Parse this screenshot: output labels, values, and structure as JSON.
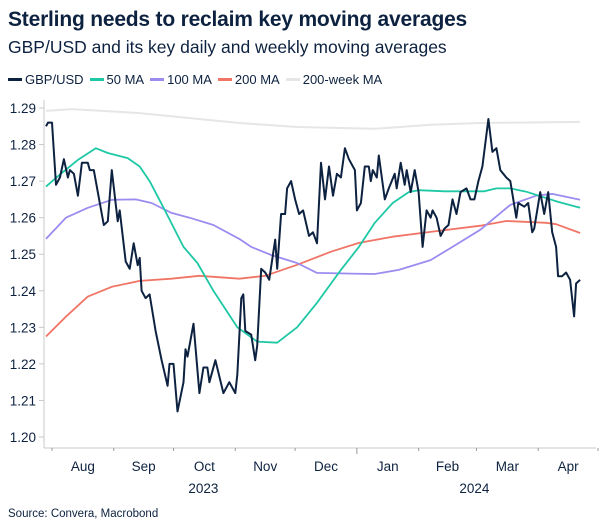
{
  "chart_data": {
    "type": "line",
    "title": "Sterling needs to reclaim key moving averages",
    "subtitle": "GBP/USD and its key daily and weekly moving averages",
    "source": "Source: Convera, Macrobond",
    "ylim": [
      1.2,
      1.29
    ],
    "yticks": [
      "1.29",
      "1.28",
      "1.27",
      "1.26",
      "1.25",
      "1.24",
      "1.23",
      "1.22",
      "1.21",
      "1.20"
    ],
    "xlim": [
      "2023-07-28",
      "2024-04-30"
    ],
    "xmonths": [
      {
        "label": "Aug",
        "start": "2023-08-01"
      },
      {
        "label": "Sep",
        "start": "2023-09-01"
      },
      {
        "label": "Oct",
        "start": "2023-10-01"
      },
      {
        "label": "Nov",
        "start": "2023-11-01"
      },
      {
        "label": "Dec",
        "start": "2023-12-01"
      },
      {
        "label": "Jan",
        "start": "2024-01-01"
      },
      {
        "label": "Feb",
        "start": "2024-02-01"
      },
      {
        "label": "Mar",
        "start": "2024-03-01"
      },
      {
        "label": "Apr",
        "start": "2024-04-01"
      }
    ],
    "month_end": "2024-05-01",
    "years": [
      {
        "label": "2023",
        "center": "2023-10-16"
      },
      {
        "label": "2024",
        "center": "2024-02-29"
      }
    ],
    "grid": false,
    "legend_placement": "top-left",
    "series": [
      {
        "name": "GBP/USD",
        "color": "#0d2240",
        "width": 2,
        "points": [
          [
            "2023-07-29",
            1.285
          ],
          [
            "2023-07-30",
            1.286
          ],
          [
            "2023-08-01",
            1.286
          ],
          [
            "2023-08-03",
            1.269
          ],
          [
            "2023-08-05",
            1.271
          ],
          [
            "2023-08-07",
            1.276
          ],
          [
            "2023-08-09",
            1.271
          ],
          [
            "2023-08-10",
            1.273
          ],
          [
            "2023-08-12",
            1.272
          ],
          [
            "2023-08-14",
            1.266
          ],
          [
            "2023-08-16",
            1.275
          ],
          [
            "2023-08-19",
            1.275
          ],
          [
            "2023-08-20",
            1.273
          ],
          [
            "2023-08-22",
            1.273
          ],
          [
            "2023-08-24",
            1.267
          ],
          [
            "2023-08-27",
            1.258
          ],
          [
            "2023-08-29",
            1.259
          ],
          [
            "2023-08-31",
            1.273
          ],
          [
            "2023-09-03",
            1.259
          ],
          [
            "2023-09-04",
            1.262
          ],
          [
            "2023-09-07",
            1.248
          ],
          [
            "2023-09-09",
            1.246
          ],
          [
            "2023-09-11",
            1.253
          ],
          [
            "2023-09-13",
            1.247
          ],
          [
            "2023-09-14",
            1.249
          ],
          [
            "2023-09-15",
            1.24
          ],
          [
            "2023-09-17",
            1.238
          ],
          [
            "2023-09-19",
            1.239
          ],
          [
            "2023-09-22",
            1.229
          ],
          [
            "2023-09-25",
            1.221
          ],
          [
            "2023-09-28",
            1.214
          ],
          [
            "2023-09-29",
            1.22
          ],
          [
            "2023-10-01",
            1.22
          ],
          [
            "2023-10-03",
            1.207
          ],
          [
            "2023-10-06",
            1.215
          ],
          [
            "2023-10-07",
            1.224
          ],
          [
            "2023-10-08",
            1.222
          ],
          [
            "2023-10-11",
            1.231
          ],
          [
            "2023-10-14",
            1.212
          ],
          [
            "2023-10-16",
            1.219
          ],
          [
            "2023-10-18",
            1.219
          ],
          [
            "2023-10-19",
            1.215
          ],
          [
            "2023-10-22",
            1.221
          ],
          [
            "2023-10-26",
            1.212
          ],
          [
            "2023-10-29",
            1.215
          ],
          [
            "2023-11-01",
            1.212
          ],
          [
            "2023-11-02",
            1.217
          ],
          [
            "2023-11-04",
            1.238
          ],
          [
            "2023-11-05",
            1.239
          ],
          [
            "2023-11-06",
            1.229
          ],
          [
            "2023-11-09",
            1.228
          ],
          [
            "2023-11-11",
            1.221
          ],
          [
            "2023-11-12",
            1.225
          ],
          [
            "2023-11-14",
            1.246
          ],
          [
            "2023-11-16",
            1.245
          ],
          [
            "2023-11-18",
            1.243
          ],
          [
            "2023-11-21",
            1.254
          ],
          [
            "2023-11-22",
            1.246
          ],
          [
            "2023-11-24",
            1.261
          ],
          [
            "2023-11-26",
            1.261
          ],
          [
            "2023-11-27",
            1.268
          ],
          [
            "2023-11-29",
            1.27
          ],
          [
            "2023-12-01",
            1.265
          ],
          [
            "2023-12-03",
            1.261
          ],
          [
            "2023-12-05",
            1.262
          ],
          [
            "2023-12-08",
            1.255
          ],
          [
            "2023-12-10",
            1.256
          ],
          [
            "2023-12-12",
            1.253
          ],
          [
            "2023-12-14",
            1.275
          ],
          [
            "2023-12-16",
            1.265
          ],
          [
            "2023-12-18",
            1.274
          ],
          [
            "2023-12-20",
            1.266
          ],
          [
            "2023-12-22",
            1.272
          ],
          [
            "2023-12-24",
            1.271
          ],
          [
            "2023-12-26",
            1.279
          ],
          [
            "2023-12-28",
            1.276
          ],
          [
            "2023-12-31",
            1.273
          ],
          [
            "2024-01-01",
            1.262
          ],
          [
            "2024-01-03",
            1.264
          ],
          [
            "2024-01-05",
            1.274
          ],
          [
            "2024-01-07",
            1.274
          ],
          [
            "2024-01-08",
            1.27
          ],
          [
            "2024-01-09",
            1.273
          ],
          [
            "2024-01-11",
            1.271
          ],
          [
            "2024-01-12",
            1.277
          ],
          [
            "2024-01-15",
            1.265
          ],
          [
            "2024-01-17",
            1.268
          ],
          [
            "2024-01-20",
            1.272
          ],
          [
            "2024-01-21",
            1.268
          ],
          [
            "2024-01-23",
            1.275
          ],
          [
            "2024-01-25",
            1.269
          ],
          [
            "2024-01-26",
            1.273
          ],
          [
            "2024-01-28",
            1.267
          ],
          [
            "2024-01-30",
            1.273
          ],
          [
            "2024-02-01",
            1.267
          ],
          [
            "2024-02-03",
            1.252
          ],
          [
            "2024-02-05",
            1.262
          ],
          [
            "2024-02-07",
            1.26
          ],
          [
            "2024-02-08",
            1.262
          ],
          [
            "2024-02-10",
            1.26
          ],
          [
            "2024-02-12",
            1.255
          ],
          [
            "2024-02-14",
            1.257
          ],
          [
            "2024-02-16",
            1.258
          ],
          [
            "2024-02-18",
            1.265
          ],
          [
            "2024-02-20",
            1.261
          ],
          [
            "2024-02-22",
            1.267
          ],
          [
            "2024-02-25",
            1.268
          ],
          [
            "2024-02-27",
            1.265
          ],
          [
            "2024-02-29",
            1.265
          ],
          [
            "2024-03-02",
            1.27
          ],
          [
            "2024-03-04",
            1.274
          ],
          [
            "2024-03-07",
            1.287
          ],
          [
            "2024-03-09",
            1.278
          ],
          [
            "2024-03-11",
            1.279
          ],
          [
            "2024-03-13",
            1.273
          ],
          [
            "2024-03-16",
            1.271
          ],
          [
            "2024-03-18",
            1.27
          ],
          [
            "2024-03-21",
            1.26
          ],
          [
            "2024-03-22",
            1.264
          ],
          [
            "2024-03-25",
            1.263
          ],
          [
            "2024-03-27",
            1.264
          ],
          [
            "2024-03-29",
            1.256
          ],
          [
            "2024-03-30",
            1.257
          ],
          [
            "2024-04-02",
            1.267
          ],
          [
            "2024-04-04",
            1.261
          ],
          [
            "2024-04-06",
            1.267
          ],
          [
            "2024-04-08",
            1.256
          ],
          [
            "2024-04-10",
            1.252
          ],
          [
            "2024-04-11",
            1.244
          ],
          [
            "2024-04-13",
            1.244
          ],
          [
            "2024-04-15",
            1.245
          ],
          [
            "2024-04-17",
            1.243
          ],
          [
            "2024-04-19",
            1.233
          ],
          [
            "2024-04-20",
            1.242
          ],
          [
            "2024-04-22",
            1.243
          ]
        ]
      },
      {
        "name": "50 MA",
        "color": "#1ec8a5",
        "width": 1.8,
        "points": [
          [
            "2023-07-29",
            1.2685
          ],
          [
            "2023-08-05",
            1.2718
          ],
          [
            "2023-08-14",
            1.2758
          ],
          [
            "2023-08-23",
            1.279
          ],
          [
            "2023-08-29",
            1.2777
          ],
          [
            "2023-09-08",
            1.2763
          ],
          [
            "2023-09-14",
            1.274
          ],
          [
            "2023-09-19",
            1.27
          ],
          [
            "2023-09-26",
            1.2627
          ],
          [
            "2023-10-06",
            1.252
          ],
          [
            "2023-10-13",
            1.2476
          ],
          [
            "2023-10-21",
            1.24
          ],
          [
            "2023-11-02",
            1.23
          ],
          [
            "2023-11-12",
            1.2261
          ],
          [
            "2023-11-22",
            1.2258
          ],
          [
            "2023-12-02",
            1.23
          ],
          [
            "2023-12-12",
            1.2367
          ],
          [
            "2023-12-24",
            1.2457
          ],
          [
            "2024-01-02",
            1.252
          ],
          [
            "2024-01-10",
            1.2586
          ],
          [
            "2024-01-19",
            1.264
          ],
          [
            "2024-01-27",
            1.267
          ],
          [
            "2024-02-01",
            1.2675
          ],
          [
            "2024-02-14",
            1.2672
          ],
          [
            "2024-03-05",
            1.2672
          ],
          [
            "2024-03-11",
            1.268
          ],
          [
            "2024-03-18",
            1.268
          ],
          [
            "2024-03-26",
            1.2671
          ],
          [
            "2024-04-03",
            1.2657
          ],
          [
            "2024-04-11",
            1.2643
          ],
          [
            "2024-04-22",
            1.2627
          ]
        ]
      },
      {
        "name": "100 MA",
        "color": "#9b8cf0",
        "width": 1.8,
        "points": [
          [
            "2023-07-29",
            1.2542
          ],
          [
            "2023-08-08",
            1.26
          ],
          [
            "2023-08-19",
            1.2627
          ],
          [
            "2023-08-31",
            1.2649
          ],
          [
            "2023-09-12",
            1.265
          ],
          [
            "2023-09-20",
            1.264
          ],
          [
            "2023-09-30",
            1.2613
          ],
          [
            "2023-10-09",
            1.26
          ],
          [
            "2023-10-21",
            1.258
          ],
          [
            "2023-11-03",
            1.2542
          ],
          [
            "2023-11-09",
            1.252
          ],
          [
            "2023-11-19",
            1.2498
          ],
          [
            "2023-12-02",
            1.2476
          ],
          [
            "2023-12-12",
            1.2449
          ],
          [
            "2023-12-29",
            1.2447
          ],
          [
            "2024-01-10",
            1.2446
          ],
          [
            "2024-01-22",
            1.2457
          ],
          [
            "2024-02-07",
            1.2484
          ],
          [
            "2024-02-18",
            1.252
          ],
          [
            "2024-03-03",
            1.2567
          ],
          [
            "2024-03-18",
            1.2635
          ],
          [
            "2024-03-31",
            1.266
          ],
          [
            "2024-04-08",
            1.2665
          ],
          [
            "2024-04-22",
            1.2649
          ]
        ]
      },
      {
        "name": "200 MA",
        "color": "#f07566",
        "width": 1.8,
        "points": [
          [
            "2023-07-29",
            1.2275
          ],
          [
            "2023-08-08",
            1.2329
          ],
          [
            "2023-08-19",
            1.2384
          ],
          [
            "2023-08-31",
            1.2411
          ],
          [
            "2023-09-14",
            1.2427
          ],
          [
            "2023-09-30",
            1.2433
          ],
          [
            "2023-10-14",
            1.2441
          ],
          [
            "2023-11-03",
            1.2433
          ],
          [
            "2023-11-16",
            1.2441
          ],
          [
            "2023-12-02",
            1.2471
          ],
          [
            "2023-12-19",
            1.2507
          ],
          [
            "2024-01-02",
            1.2531
          ],
          [
            "2024-01-19",
            1.2548
          ],
          [
            "2024-02-07",
            1.2561
          ],
          [
            "2024-03-03",
            1.2578
          ],
          [
            "2024-03-16",
            1.2591
          ],
          [
            "2024-04-05",
            1.2586
          ],
          [
            "2024-04-10",
            1.2582
          ],
          [
            "2024-04-22",
            1.2558
          ]
        ]
      },
      {
        "name": "200-week MA",
        "color": "#e6e6e6",
        "width": 2,
        "points": [
          [
            "2023-07-29",
            1.2892
          ],
          [
            "2023-08-11",
            1.2897
          ],
          [
            "2023-09-14",
            1.2886
          ],
          [
            "2023-11-03",
            1.2859
          ],
          [
            "2023-12-02",
            1.2848
          ],
          [
            "2024-01-10",
            1.2843
          ],
          [
            "2024-02-07",
            1.2854
          ],
          [
            "2024-03-03",
            1.2859
          ],
          [
            "2024-04-22",
            1.2862
          ]
        ]
      }
    ]
  }
}
